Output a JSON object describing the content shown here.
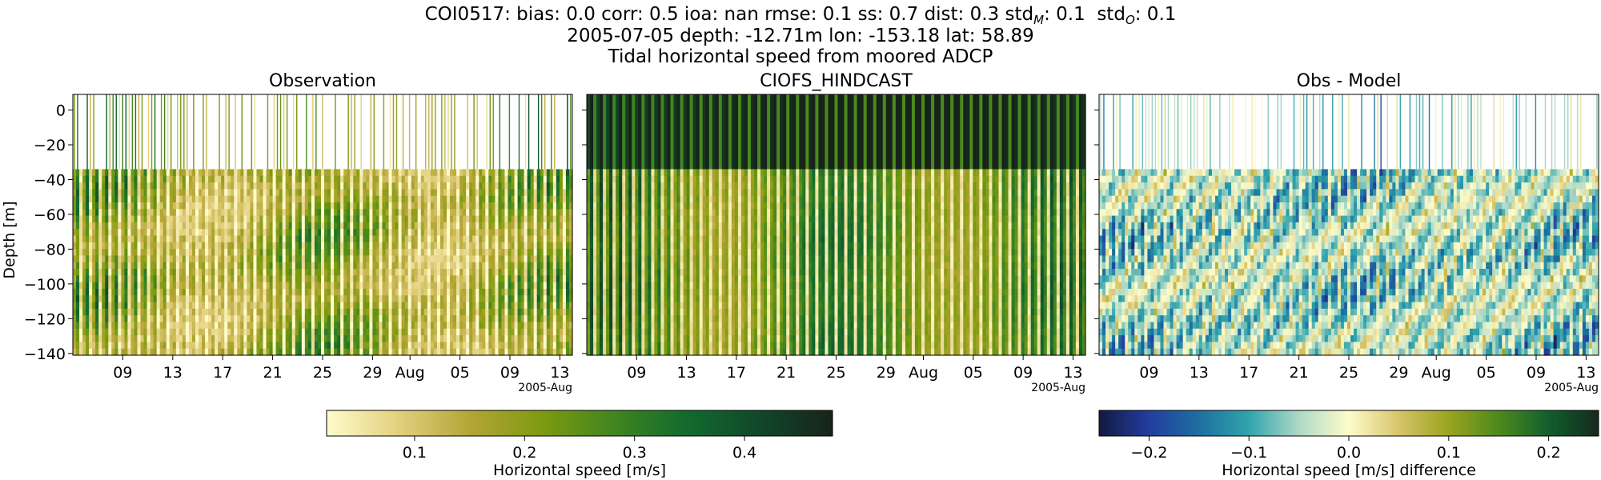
{
  "figure": {
    "title_lines": [
      "COI0517: bias: 0.0  corr: 0.5  ioa: nan  rmse: 0.1  ss: 0.7  dist: 0.3  std",
      "2005-07-05 depth: -12.71m lon: -153.18 lat: 58.89",
      "Tidal horizontal speed from moored ADCP"
    ],
    "stat_std_model": {
      "sub": "M",
      "value": ": 0.1"
    },
    "stat_std_obs": {
      "prefix": "  std",
      "sub": "O",
      "value": ": 0.1"
    }
  },
  "chart_data": [
    {
      "type": "heatmap",
      "title": "Observation",
      "ylabel": "Depth [m]",
      "xlabel": "",
      "x_range": [
        "2005-07-05",
        "2005-08-14"
      ],
      "ylim": [
        -141,
        9
      ],
      "y_ticks": [
        0,
        -20,
        -40,
        -60,
        -80,
        -100,
        -120,
        -140
      ],
      "y_tick_labels": [
        "0",
        "−20",
        "−40",
        "−60",
        "−80",
        "−100",
        "−120",
        "−140"
      ],
      "x_ticks": [
        "2005-07-09",
        "2005-07-13",
        "2005-07-17",
        "2005-07-21",
        "2005-07-25",
        "2005-07-29",
        "2005-08-01",
        "2005-08-05",
        "2005-08-09",
        "2005-08-13"
      ],
      "x_tick_labels": [
        "09",
        "13",
        "17",
        "21",
        "25",
        "29",
        "Aug",
        "05",
        "09",
        "13"
      ],
      "x_offset_label": "2005-Aug",
      "colormap": "speed",
      "value_range": [
        0.02,
        0.48
      ],
      "surface_bin_sparse": true,
      "surface_bin_depth_range": [
        -34,
        9
      ]
    },
    {
      "type": "heatmap",
      "title": "CIOFS_HINDCAST",
      "x_range": [
        "2005-07-05",
        "2005-08-14"
      ],
      "ylim": [
        -141,
        9
      ],
      "x_ticks": [
        "2005-07-09",
        "2005-07-13",
        "2005-07-17",
        "2005-07-21",
        "2005-07-25",
        "2005-07-29",
        "2005-08-01",
        "2005-08-05",
        "2005-08-09",
        "2005-08-13"
      ],
      "x_tick_labels": [
        "09",
        "13",
        "17",
        "21",
        "25",
        "29",
        "Aug",
        "05",
        "09",
        "13"
      ],
      "x_offset_label": "2005-Aug",
      "colormap": "speed",
      "value_range": [
        0.02,
        0.48
      ],
      "surface_bin_sparse": false
    },
    {
      "type": "heatmap",
      "title": "Obs - Model",
      "x_range": [
        "2005-07-05",
        "2005-08-14"
      ],
      "ylim": [
        -141,
        9
      ],
      "x_ticks": [
        "2005-07-09",
        "2005-07-13",
        "2005-07-17",
        "2005-07-21",
        "2005-07-25",
        "2005-07-29",
        "2005-08-01",
        "2005-08-05",
        "2005-08-09",
        "2005-08-13"
      ],
      "x_tick_labels": [
        "09",
        "13",
        "17",
        "21",
        "25",
        "29",
        "Aug",
        "05",
        "09",
        "13"
      ],
      "x_offset_label": "2005-Aug",
      "colormap": "delta",
      "value_range": [
        -0.25,
        0.25
      ],
      "surface_bin_sparse": true
    }
  ],
  "colorbars": [
    {
      "label": "Horizontal speed [m/s]",
      "colormap": "speed",
      "range": [
        0.02,
        0.48
      ],
      "ticks": [
        0.1,
        0.2,
        0.3,
        0.4
      ],
      "tick_labels": [
        "0.1",
        "0.2",
        "0.3",
        "0.4"
      ]
    },
    {
      "label": "Horizontal speed [m/s] difference",
      "colormap": "delta",
      "range": [
        -0.25,
        0.25
      ],
      "ticks": [
        -0.2,
        -0.1,
        0.0,
        0.1,
        0.2
      ],
      "tick_labels": [
        "−0.2",
        "−0.1",
        "0.0",
        "0.1",
        "0.2"
      ]
    }
  ],
  "colors": {
    "speed": [
      "#fefccb",
      "#e3cf7d",
      "#b3a535",
      "#7c9a10",
      "#3f8520",
      "#126a2e",
      "#11472a",
      "#17231a"
    ],
    "delta": [
      "#111a40",
      "#243da0",
      "#1d6fa0",
      "#31a4ad",
      "#aed9c6",
      "#fefccb",
      "#d8c46a",
      "#9aa41e",
      "#4d8a1c",
      "#115e2f",
      "#16291c"
    ]
  }
}
